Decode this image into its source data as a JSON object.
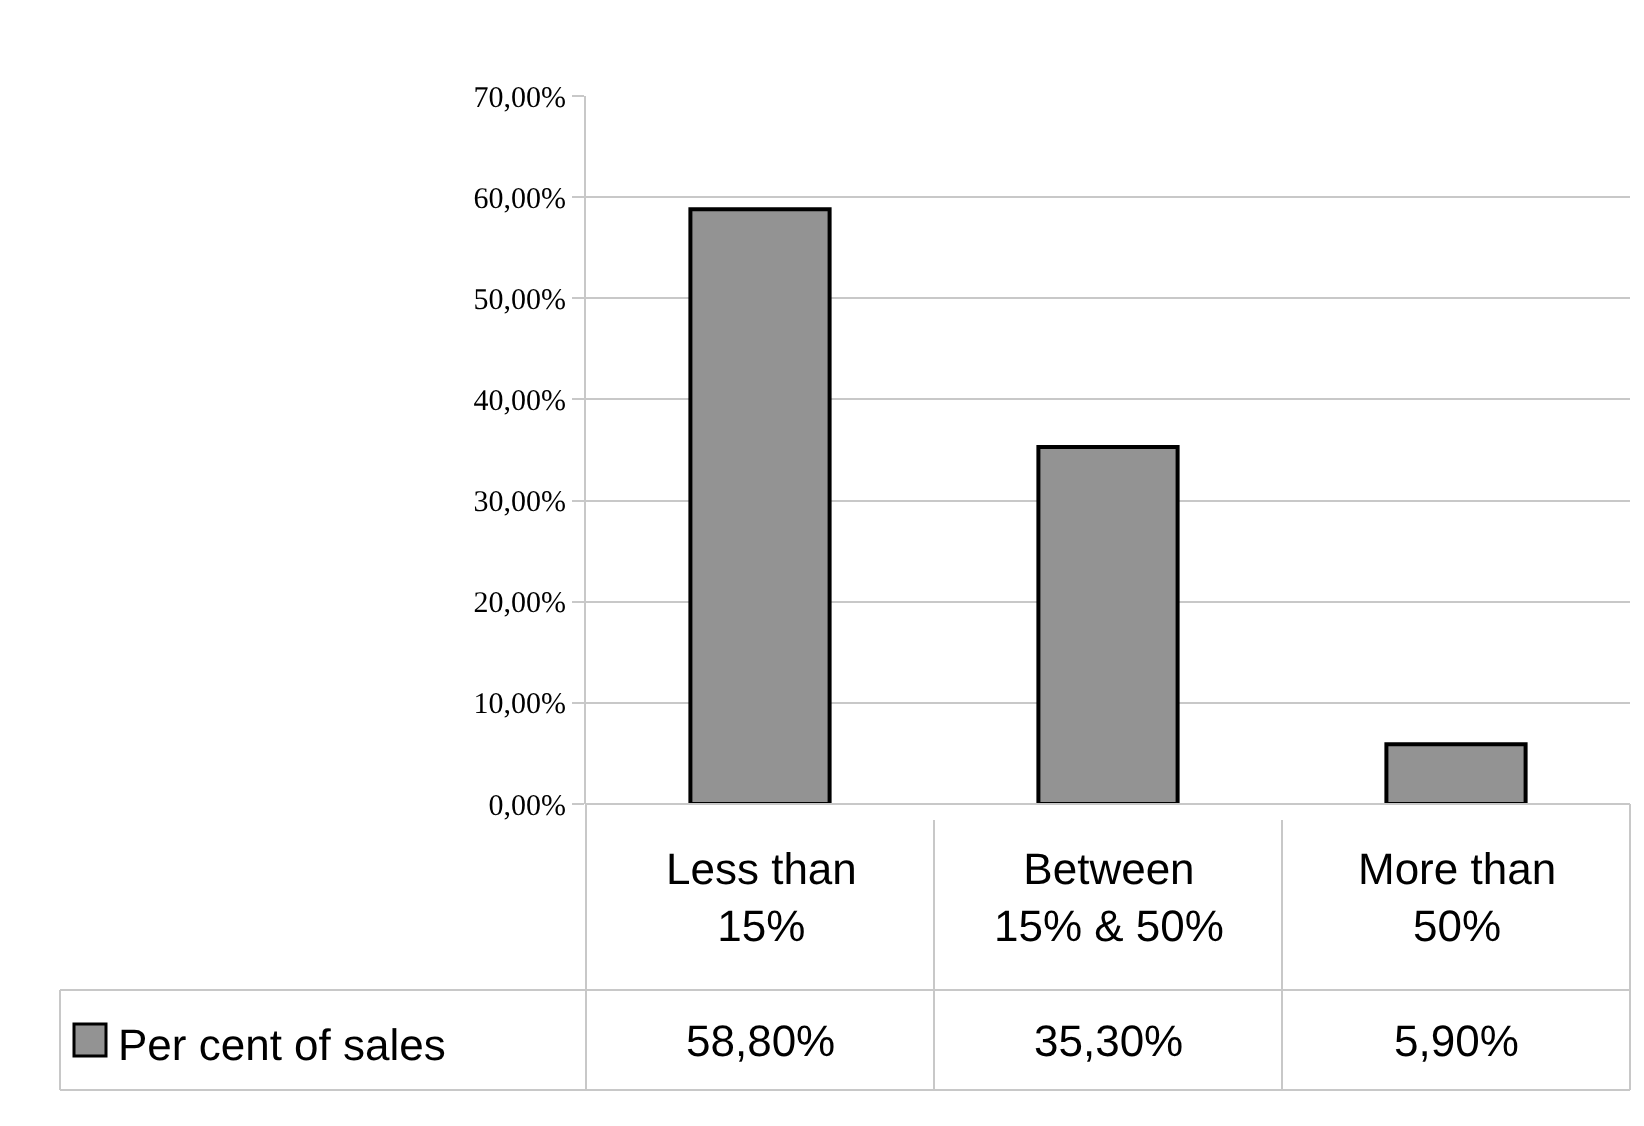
{
  "chart_data": {
    "type": "bar",
    "categories": [
      "Less than 15%",
      "Between 15% & 50%",
      "More than 50%"
    ],
    "series": [
      {
        "name": "Per cent of sales",
        "color": "#939393",
        "values": [
          58.8,
          35.3,
          5.9
        ],
        "value_labels": [
          "58,80%",
          "35,30%",
          "5,90%"
        ]
      }
    ],
    "ylim": [
      0,
      70
    ],
    "yticks": [
      {
        "value": 0,
        "label": "0,00%"
      },
      {
        "value": 10,
        "label": "10,00%"
      },
      {
        "value": 20,
        "label": "20,00%"
      },
      {
        "value": 30,
        "label": "30,00%"
      },
      {
        "value": 40,
        "label": "40,00%"
      },
      {
        "value": 50,
        "label": "50,00%"
      },
      {
        "value": 60,
        "label": "60,00%"
      },
      {
        "value": 70,
        "label": "70,00%"
      }
    ],
    "grid": "y",
    "legend": "bottom left"
  }
}
